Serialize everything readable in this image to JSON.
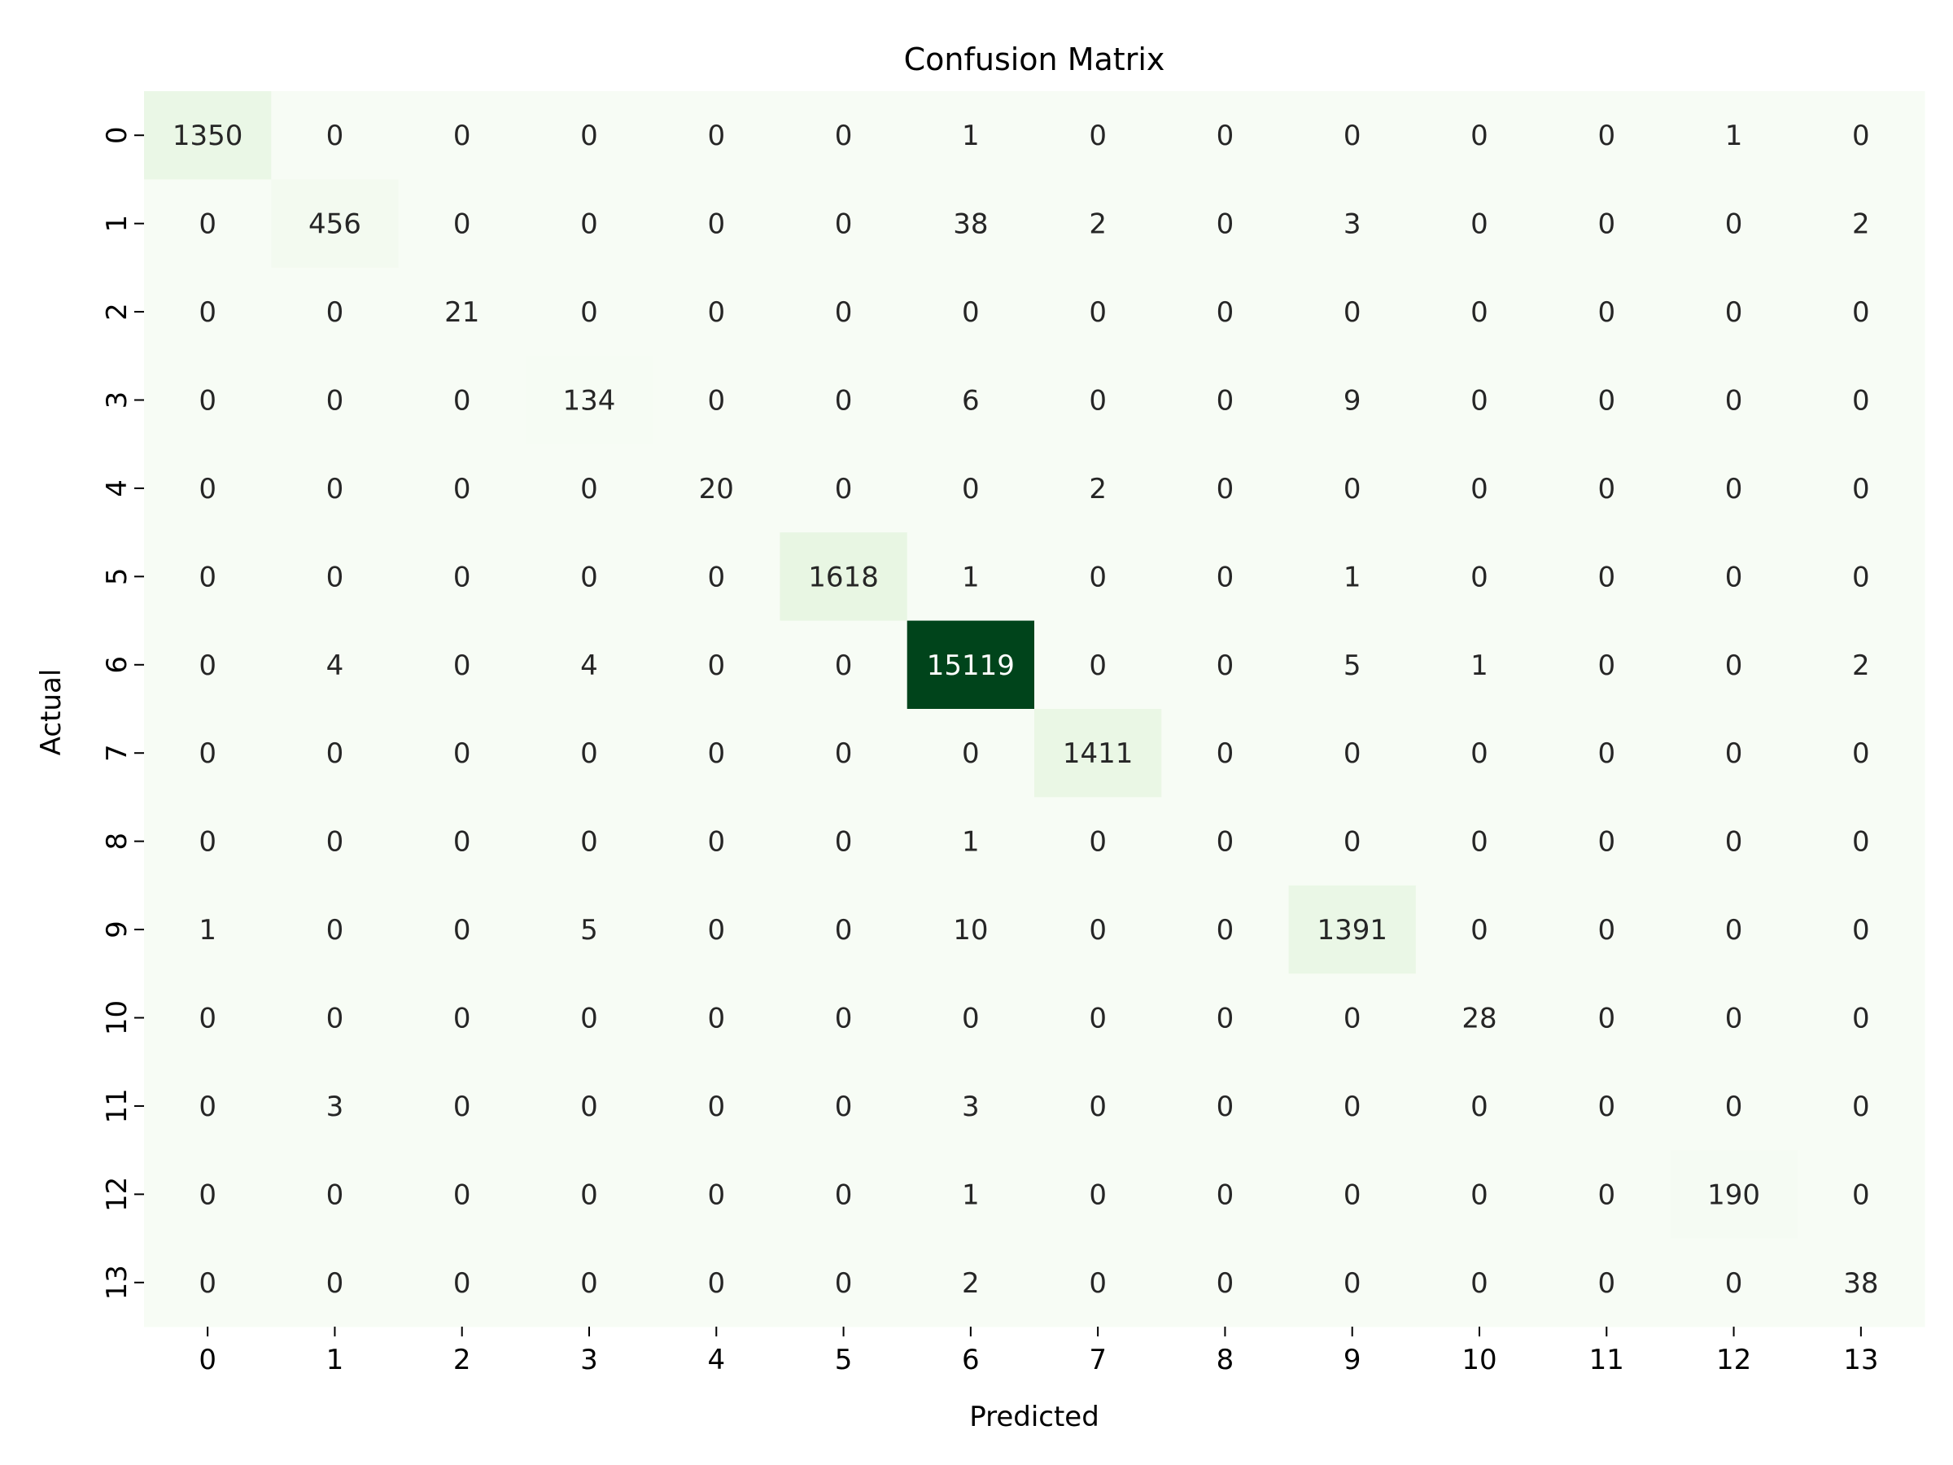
{
  "chart_data": {
    "type": "heatmap",
    "title": "Confusion Matrix",
    "xlabel": "Predicted",
    "ylabel": "Actual",
    "x_categories": [
      "0",
      "1",
      "2",
      "3",
      "4",
      "5",
      "6",
      "7",
      "8",
      "9",
      "10",
      "11",
      "12",
      "13"
    ],
    "y_categories": [
      "0",
      "1",
      "2",
      "3",
      "4",
      "5",
      "6",
      "7",
      "8",
      "9",
      "10",
      "11",
      "12",
      "13"
    ],
    "colormap": "Greens",
    "color_low": "#f7fcf5",
    "color_high": "#00441b",
    "value_range": [
      0,
      15119
    ],
    "colorbar": false,
    "grid": false,
    "values": [
      [
        1350,
        0,
        0,
        0,
        0,
        0,
        1,
        0,
        0,
        0,
        0,
        0,
        1,
        0
      ],
      [
        0,
        456,
        0,
        0,
        0,
        0,
        38,
        2,
        0,
        3,
        0,
        0,
        0,
        2
      ],
      [
        0,
        0,
        21,
        0,
        0,
        0,
        0,
        0,
        0,
        0,
        0,
        0,
        0,
        0
      ],
      [
        0,
        0,
        0,
        134,
        0,
        0,
        6,
        0,
        0,
        9,
        0,
        0,
        0,
        0
      ],
      [
        0,
        0,
        0,
        0,
        20,
        0,
        0,
        2,
        0,
        0,
        0,
        0,
        0,
        0
      ],
      [
        0,
        0,
        0,
        0,
        0,
        1618,
        1,
        0,
        0,
        1,
        0,
        0,
        0,
        0
      ],
      [
        0,
        4,
        0,
        4,
        0,
        0,
        15119,
        0,
        0,
        5,
        1,
        0,
        0,
        2
      ],
      [
        0,
        0,
        0,
        0,
        0,
        0,
        0,
        1411,
        0,
        0,
        0,
        0,
        0,
        0
      ],
      [
        0,
        0,
        0,
        0,
        0,
        0,
        1,
        0,
        0,
        0,
        0,
        0,
        0,
        0
      ],
      [
        1,
        0,
        0,
        5,
        0,
        0,
        10,
        0,
        0,
        1391,
        0,
        0,
        0,
        0
      ],
      [
        0,
        0,
        0,
        0,
        0,
        0,
        0,
        0,
        0,
        0,
        28,
        0,
        0,
        0
      ],
      [
        0,
        3,
        0,
        0,
        0,
        0,
        3,
        0,
        0,
        0,
        0,
        0,
        0,
        0
      ],
      [
        0,
        0,
        0,
        0,
        0,
        0,
        1,
        0,
        0,
        0,
        0,
        0,
        190,
        0
      ],
      [
        0,
        0,
        0,
        0,
        0,
        0,
        2,
        0,
        0,
        0,
        0,
        0,
        0,
        38
      ]
    ]
  }
}
